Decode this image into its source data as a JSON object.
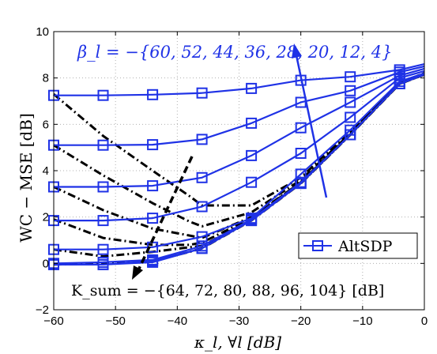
{
  "chart_data": {
    "type": "line",
    "xlabel": "κ_l,  ∀l  [dB]",
    "ylabel": "WC − MSE  [dB]",
    "xlim": [
      -60,
      0
    ],
    "ylim": [
      -2,
      10
    ],
    "grid": true,
    "x_ticks": [
      "−60",
      "−50",
      "−40",
      "−30",
      "−20",
      "−10",
      "0"
    ],
    "y_ticks": [
      "−2",
      "0",
      "2",
      "4",
      "6",
      "8",
      "10"
    ],
    "legend": {
      "label": "AltSDP",
      "position": "lower-right"
    },
    "annotations": {
      "beta": "β_l = −{60, 52, 44, 36, 28, 20, 12, 4}",
      "ksum": "K_sum = −{64, 72, 80, 88, 96, 104}  [dB]"
    },
    "colors": {
      "altsdp": "#1f32e6",
      "ksum_curves": "#000000"
    },
    "x": [
      -60,
      -52,
      -44,
      -36,
      -28,
      -20,
      -12,
      -4,
      0
    ],
    "series": [
      {
        "values": [
          7.25,
          7.25,
          7.28,
          7.35,
          7.55,
          7.9,
          8.05,
          8.35,
          8.6
        ]
      },
      {
        "values": [
          5.1,
          5.1,
          5.12,
          5.35,
          6.05,
          6.95,
          7.45,
          8.25,
          8.5
        ]
      },
      {
        "values": [
          3.3,
          3.3,
          3.35,
          3.7,
          4.65,
          5.85,
          6.95,
          8.1,
          8.4
        ]
      },
      {
        "values": [
          1.85,
          1.85,
          1.95,
          2.45,
          3.5,
          4.75,
          6.3,
          8.0,
          8.3
        ]
      },
      {
        "values": [
          0.6,
          0.6,
          0.7,
          1.15,
          1.95,
          3.85,
          5.75,
          7.85,
          8.2
        ]
      },
      {
        "values": [
          0.0,
          0.05,
          0.15,
          0.75,
          1.9,
          3.5,
          5.55,
          7.75,
          8.15
        ]
      },
      {
        "values": [
          -0.05,
          -0.05,
          0.1,
          0.65,
          1.85,
          3.45,
          5.55,
          7.75,
          8.15
        ]
      },
      {
        "values": [
          -0.05,
          -0.05,
          0.05,
          0.65,
          1.85,
          3.45,
          5.55,
          7.75,
          8.15
        ]
      }
    ],
    "ksum_curves": [
      {
        "x": [
          -60,
          -52,
          -44,
          -38,
          -36,
          -28,
          -20,
          -12,
          -4,
          0
        ],
        "y": [
          7.3,
          5.5,
          4.0,
          2.9,
          2.5,
          2.5,
          3.7,
          5.7,
          7.8,
          8.2
        ]
      },
      {
        "x": [
          -60,
          -52,
          -44,
          -38,
          -36,
          -28,
          -20,
          -12,
          -4,
          0
        ],
        "y": [
          5.1,
          3.8,
          2.6,
          1.8,
          1.6,
          2.2,
          3.6,
          5.6,
          7.8,
          8.2
        ]
      },
      {
        "x": [
          -60,
          -52,
          -44,
          -38,
          -36,
          -28,
          -20,
          -12,
          -4,
          0
        ],
        "y": [
          3.3,
          2.3,
          1.5,
          1.2,
          1.1,
          2.0,
          3.5,
          5.6,
          7.75,
          8.15
        ]
      },
      {
        "x": [
          -60,
          -52,
          -44,
          -38,
          -36,
          -28,
          -20,
          -12,
          -4,
          0
        ],
        "y": [
          1.9,
          1.1,
          0.8,
          0.8,
          0.9,
          1.95,
          3.5,
          5.55,
          7.75,
          8.15
        ]
      },
      {
        "x": [
          -60,
          -52,
          -44,
          -38,
          -36,
          -28,
          -20,
          -12,
          -4,
          0
        ],
        "y": [
          0.6,
          0.3,
          0.5,
          0.7,
          0.75,
          1.9,
          3.45,
          5.55,
          7.75,
          8.15
        ]
      },
      {
        "x": [
          -60,
          -52,
          -44,
          -38,
          -36,
          -28,
          -20,
          -12,
          -4,
          0
        ],
        "y": [
          -0.05,
          0.0,
          0.1,
          0.5,
          0.65,
          1.85,
          3.45,
          5.55,
          7.75,
          8.15
        ]
      }
    ]
  }
}
